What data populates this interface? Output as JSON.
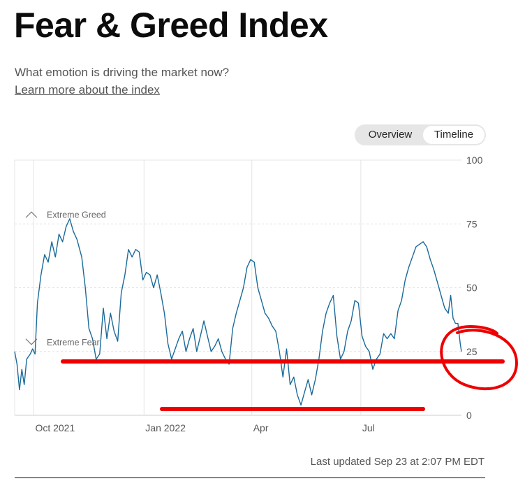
{
  "page": {
    "title": "Fear & Greed Index",
    "subtitle": "What emotion is driving the market now?",
    "learn_more": "Learn more about the index",
    "last_updated": "Last updated Sep 23 at 2:07 PM EDT"
  },
  "toggle": {
    "overview": "Overview",
    "timeline": "Timeline",
    "active": "Timeline"
  },
  "colors": {
    "line": "#1a6a9a",
    "annotation": "#ee0000",
    "grid": "#e4e4e4"
  },
  "chart_data": {
    "type": "line",
    "title": "",
    "xlabel": "",
    "ylabel": "",
    "ylim": [
      0,
      100
    ],
    "yticks": [
      0,
      25,
      50,
      75,
      100
    ],
    "x_range": [
      "2021-09-15",
      "2022-09-23"
    ],
    "x_ticks": [
      {
        "date": "2021-10-01",
        "label": "Oct 2021"
      },
      {
        "date": "2022-01-01",
        "label": "Jan 2022"
      },
      {
        "date": "2022-04-01",
        "label": "Apr"
      },
      {
        "date": "2022-07-01",
        "label": "Jul"
      }
    ],
    "zone_labels": [
      {
        "label": "Extreme Greed",
        "y": 75
      },
      {
        "label": "Extreme Fear",
        "y": 25
      }
    ],
    "series": [
      {
        "values": [
          [
            "2021-09-15",
            25
          ],
          [
            "2021-09-17",
            20
          ],
          [
            "2021-09-19",
            10
          ],
          [
            "2021-09-21",
            18
          ],
          [
            "2021-09-23",
            12
          ],
          [
            "2021-09-25",
            22
          ],
          [
            "2021-09-28",
            24
          ],
          [
            "2021-09-30",
            26
          ],
          [
            "2021-10-02",
            24
          ],
          [
            "2021-10-04",
            44
          ],
          [
            "2021-10-07",
            55
          ],
          [
            "2021-10-10",
            63
          ],
          [
            "2021-10-13",
            60
          ],
          [
            "2021-10-16",
            68
          ],
          [
            "2021-10-19",
            62
          ],
          [
            "2021-10-22",
            71
          ],
          [
            "2021-10-25",
            68
          ],
          [
            "2021-10-28",
            74
          ],
          [
            "2021-10-31",
            77
          ],
          [
            "2021-11-03",
            72
          ],
          [
            "2021-11-06",
            69
          ],
          [
            "2021-11-10",
            62
          ],
          [
            "2021-11-13",
            50
          ],
          [
            "2021-11-16",
            34
          ],
          [
            "2021-11-19",
            30
          ],
          [
            "2021-11-22",
            22
          ],
          [
            "2021-11-25",
            24
          ],
          [
            "2021-11-28",
            42
          ],
          [
            "2021-12-01",
            30
          ],
          [
            "2021-12-04",
            40
          ],
          [
            "2021-12-07",
            33
          ],
          [
            "2021-12-10",
            29
          ],
          [
            "2021-12-13",
            48
          ],
          [
            "2021-12-16",
            55
          ],
          [
            "2021-12-19",
            65
          ],
          [
            "2021-12-22",
            62
          ],
          [
            "2021-12-25",
            65
          ],
          [
            "2021-12-28",
            64
          ],
          [
            "2021-12-31",
            53
          ],
          [
            "2022-01-03",
            56
          ],
          [
            "2022-01-06",
            55
          ],
          [
            "2022-01-09",
            50
          ],
          [
            "2022-01-12",
            55
          ],
          [
            "2022-01-15",
            48
          ],
          [
            "2022-01-18",
            40
          ],
          [
            "2022-01-21",
            28
          ],
          [
            "2022-01-24",
            22
          ],
          [
            "2022-01-27",
            26
          ],
          [
            "2022-01-30",
            30
          ],
          [
            "2022-02-02",
            33
          ],
          [
            "2022-02-05",
            25
          ],
          [
            "2022-02-08",
            30
          ],
          [
            "2022-02-11",
            34
          ],
          [
            "2022-02-14",
            25
          ],
          [
            "2022-02-17",
            31
          ],
          [
            "2022-02-20",
            37
          ],
          [
            "2022-02-23",
            31
          ],
          [
            "2022-02-26",
            25
          ],
          [
            "2022-03-01",
            27
          ],
          [
            "2022-03-04",
            30
          ],
          [
            "2022-03-07",
            25
          ],
          [
            "2022-03-10",
            22
          ],
          [
            "2022-03-13",
            20
          ],
          [
            "2022-03-16",
            34
          ],
          [
            "2022-03-19",
            40
          ],
          [
            "2022-03-22",
            45
          ],
          [
            "2022-03-25",
            50
          ],
          [
            "2022-03-28",
            58
          ],
          [
            "2022-03-31",
            61
          ],
          [
            "2022-04-03",
            60
          ],
          [
            "2022-04-06",
            50
          ],
          [
            "2022-04-09",
            45
          ],
          [
            "2022-04-12",
            40
          ],
          [
            "2022-04-15",
            38
          ],
          [
            "2022-04-18",
            35
          ],
          [
            "2022-04-21",
            33
          ],
          [
            "2022-04-24",
            25
          ],
          [
            "2022-04-27",
            15
          ],
          [
            "2022-04-30",
            26
          ],
          [
            "2022-05-03",
            12
          ],
          [
            "2022-05-06",
            15
          ],
          [
            "2022-05-09",
            8
          ],
          [
            "2022-05-12",
            4
          ],
          [
            "2022-05-15",
            9
          ],
          [
            "2022-05-18",
            14
          ],
          [
            "2022-05-21",
            8
          ],
          [
            "2022-05-24",
            14
          ],
          [
            "2022-05-27",
            22
          ],
          [
            "2022-05-30",
            33
          ],
          [
            "2022-06-02",
            40
          ],
          [
            "2022-06-05",
            44
          ],
          [
            "2022-06-08",
            47
          ],
          [
            "2022-06-11",
            31
          ],
          [
            "2022-06-14",
            22
          ],
          [
            "2022-06-17",
            25
          ],
          [
            "2022-06-20",
            33
          ],
          [
            "2022-06-23",
            37
          ],
          [
            "2022-06-26",
            45
          ],
          [
            "2022-06-29",
            44
          ],
          [
            "2022-07-02",
            31
          ],
          [
            "2022-07-05",
            27
          ],
          [
            "2022-07-08",
            25
          ],
          [
            "2022-07-11",
            18
          ],
          [
            "2022-07-14",
            22
          ],
          [
            "2022-07-17",
            24
          ],
          [
            "2022-07-20",
            32
          ],
          [
            "2022-07-23",
            30
          ],
          [
            "2022-07-26",
            32
          ],
          [
            "2022-07-29",
            30
          ],
          [
            "2022-08-01",
            41
          ],
          [
            "2022-08-04",
            45
          ],
          [
            "2022-08-07",
            53
          ],
          [
            "2022-08-10",
            58
          ],
          [
            "2022-08-13",
            62
          ],
          [
            "2022-08-16",
            66
          ],
          [
            "2022-08-19",
            67
          ],
          [
            "2022-08-22",
            68
          ],
          [
            "2022-08-25",
            66
          ],
          [
            "2022-08-28",
            61
          ],
          [
            "2022-08-31",
            57
          ],
          [
            "2022-09-03",
            52
          ],
          [
            "2022-09-06",
            47
          ],
          [
            "2022-09-09",
            42
          ],
          [
            "2022-09-12",
            40
          ],
          [
            "2022-09-14",
            47
          ],
          [
            "2022-09-16",
            38
          ],
          [
            "2022-09-18",
            36
          ],
          [
            "2022-09-20",
            36
          ],
          [
            "2022-09-22",
            28
          ],
          [
            "2022-09-23",
            25
          ]
        ]
      }
    ]
  }
}
